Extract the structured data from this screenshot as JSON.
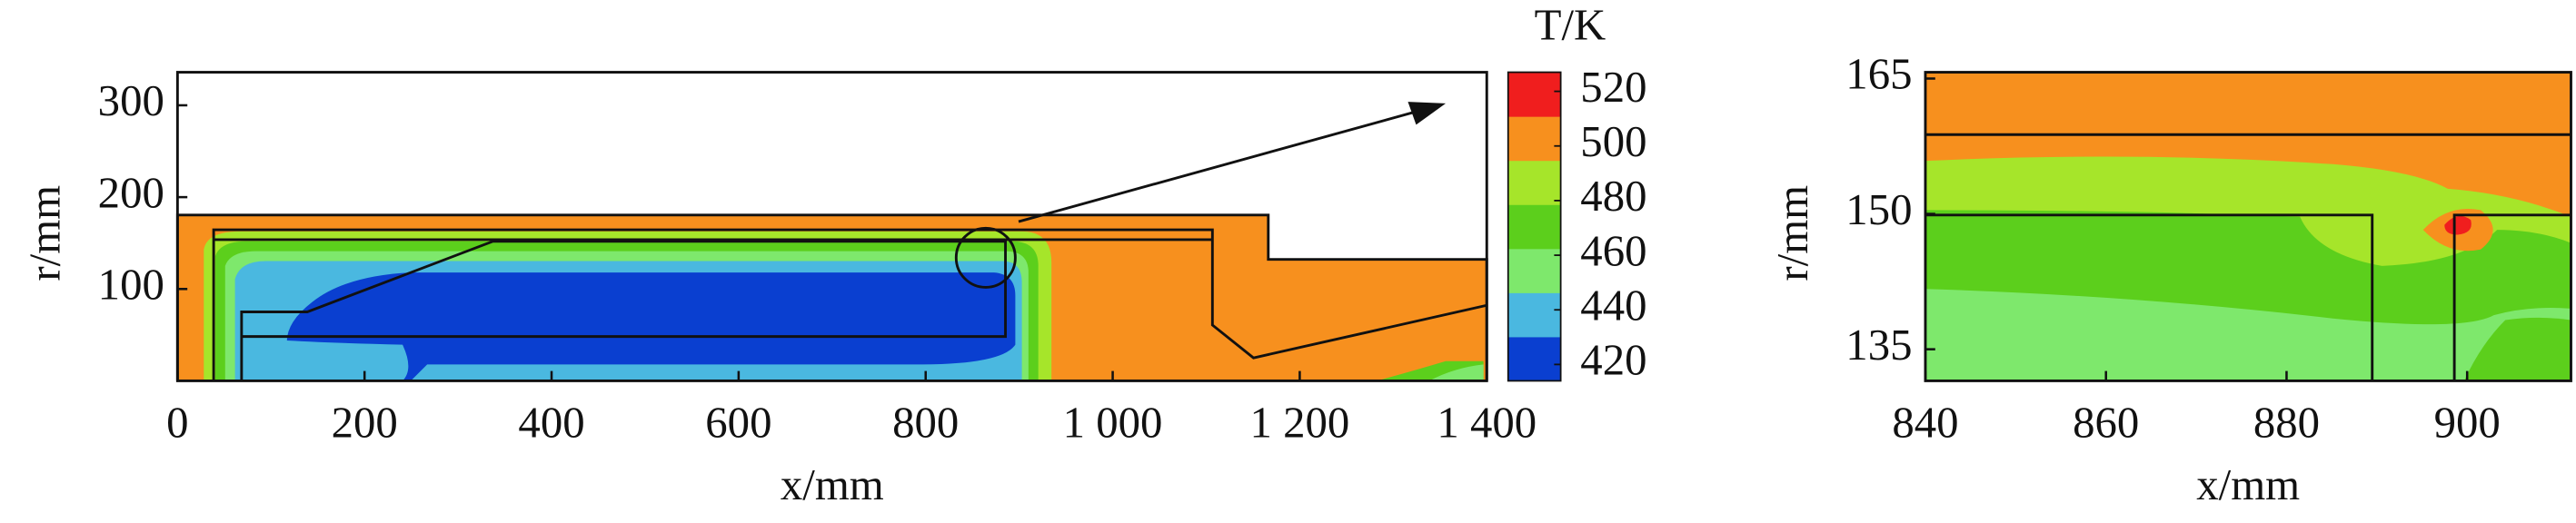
{
  "chart_data": [
    {
      "type": "contour",
      "xlabel": "x/mm",
      "ylabel": "r/mm",
      "xlim": [
        0,
        1400
      ],
      "ylim": [
        0,
        336
      ],
      "xticks": [
        0,
        200,
        400,
        600,
        800,
        {
          "value": 1000,
          "label": "1 000"
        },
        {
          "value": 1200,
          "label": "1 200"
        },
        {
          "value": 1400,
          "label": "1 400"
        }
      ],
      "yticks": [
        100,
        200,
        300
      ],
      "colorbar": {
        "title": "T/K",
        "lim": [
          414,
          527
        ],
        "ticks": [
          420,
          440,
          460,
          480,
          500,
          520
        ],
        "colors": [
          "#0a3fd0",
          "#4ab8e0",
          "#7ee86c",
          "#5ccf1c",
          "#a6e52a",
          "#f7901e",
          "#f01e1e"
        ]
      }
    },
    {
      "type": "contour",
      "xlabel": "x/mm",
      "ylabel": "r/mm",
      "xlim": [
        840,
        911.5
      ],
      "ylim": [
        131.5,
        165.7
      ],
      "xticks": [
        840,
        860,
        880,
        900
      ],
      "yticks": [
        135,
        150,
        165
      ]
    }
  ]
}
